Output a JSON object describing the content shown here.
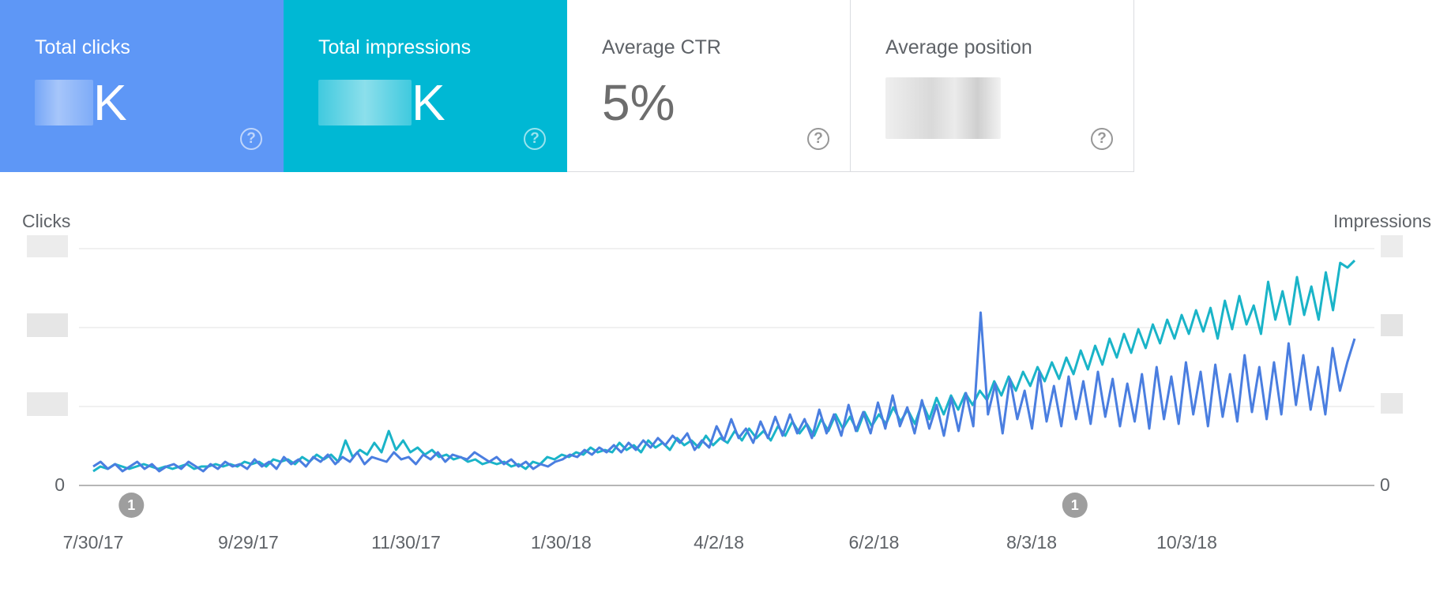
{
  "cards": [
    {
      "label": "Total clicks",
      "value_suffix": "K"
    },
    {
      "label": "Total impressions",
      "value_suffix": "K"
    },
    {
      "label": "Average CTR",
      "value": "5%"
    },
    {
      "label": "Average position"
    }
  ],
  "help_symbol": "?",
  "colors": {
    "clicks": "#5e97f6",
    "impressions": "#00b8d4",
    "clicks_line": "#4a7ee0",
    "impressions_line": "#1ab4c8",
    "grid": "#e0e0e0",
    "annotation": "#9e9e9e"
  },
  "chart_data": {
    "type": "line",
    "y_left_label": "Clicks",
    "y_right_label": "Impressions",
    "y_left_zero": "0",
    "y_right_zero": "0",
    "x_tick_labels": [
      "7/30/17",
      "9/29/17",
      "11/30/17",
      "1/30/18",
      "4/2/18",
      "6/2/18",
      "8/3/18",
      "10/3/18"
    ],
    "x_range": [
      "7/30/17",
      "12/8/18"
    ],
    "y_relative_range": [
      0,
      1
    ],
    "annotations": [
      {
        "label": "1",
        "date": "8/14/17"
      },
      {
        "label": "1",
        "date": "8/20/18"
      }
    ],
    "series": [
      {
        "name": "Clicks",
        "legend": false,
        "values": [
          0.08,
          0.1,
          0.07,
          0.09,
          0.06,
          0.08,
          0.1,
          0.07,
          0.09,
          0.06,
          0.08,
          0.09,
          0.07,
          0.1,
          0.08,
          0.06,
          0.09,
          0.07,
          0.1,
          0.08,
          0.09,
          0.07,
          0.11,
          0.08,
          0.1,
          0.07,
          0.12,
          0.09,
          0.11,
          0.08,
          0.12,
          0.1,
          0.13,
          0.09,
          0.12,
          0.1,
          0.14,
          0.09,
          0.12,
          0.11,
          0.1,
          0.14,
          0.11,
          0.12,
          0.09,
          0.13,
          0.11,
          0.14,
          0.1,
          0.13,
          0.12,
          0.11,
          0.14,
          0.12,
          0.1,
          0.12,
          0.09,
          0.11,
          0.08,
          0.1,
          0.07,
          0.09,
          0.08,
          0.1,
          0.11,
          0.13,
          0.12,
          0.15,
          0.13,
          0.16,
          0.14,
          0.17,
          0.14,
          0.18,
          0.15,
          0.19,
          0.16,
          0.2,
          0.17,
          0.21,
          0.18,
          0.22,
          0.15,
          0.19,
          0.16,
          0.25,
          0.19,
          0.28,
          0.2,
          0.24,
          0.18,
          0.27,
          0.2,
          0.29,
          0.21,
          0.3,
          0.22,
          0.28,
          0.2,
          0.32,
          0.22,
          0.3,
          0.21,
          0.34,
          0.23,
          0.31,
          0.22,
          0.35,
          0.24,
          0.38,
          0.25,
          0.33,
          0.22,
          0.36,
          0.24,
          0.34,
          0.21,
          0.37,
          0.23,
          0.39,
          0.25,
          0.73,
          0.3,
          0.43,
          0.22,
          0.45,
          0.28,
          0.4,
          0.24,
          0.48,
          0.27,
          0.42,
          0.25,
          0.46,
          0.28,
          0.44,
          0.26,
          0.48,
          0.29,
          0.45,
          0.25,
          0.43,
          0.27,
          0.47,
          0.24,
          0.5,
          0.28,
          0.46,
          0.26,
          0.52,
          0.3,
          0.48,
          0.25,
          0.51,
          0.29,
          0.47,
          0.27,
          0.55,
          0.31,
          0.5,
          0.28,
          0.52,
          0.3,
          0.6,
          0.34,
          0.55,
          0.32,
          0.5,
          0.3,
          0.58,
          0.4,
          0.52,
          0.62
        ]
      },
      {
        "name": "Impressions",
        "legend": false,
        "values": [
          0.06,
          0.08,
          0.07,
          0.09,
          0.08,
          0.07,
          0.08,
          0.09,
          0.08,
          0.07,
          0.08,
          0.07,
          0.08,
          0.09,
          0.07,
          0.08,
          0.08,
          0.09,
          0.08,
          0.09,
          0.08,
          0.1,
          0.09,
          0.1,
          0.08,
          0.11,
          0.1,
          0.11,
          0.09,
          0.12,
          0.1,
          0.13,
          0.11,
          0.13,
          0.1,
          0.19,
          0.12,
          0.15,
          0.13,
          0.18,
          0.14,
          0.23,
          0.15,
          0.19,
          0.14,
          0.16,
          0.13,
          0.15,
          0.12,
          0.13,
          0.11,
          0.12,
          0.1,
          0.11,
          0.09,
          0.1,
          0.09,
          0.1,
          0.08,
          0.09,
          0.07,
          0.1,
          0.09,
          0.12,
          0.11,
          0.13,
          0.12,
          0.14,
          0.13,
          0.16,
          0.14,
          0.15,
          0.14,
          0.18,
          0.15,
          0.17,
          0.14,
          0.19,
          0.16,
          0.18,
          0.15,
          0.2,
          0.17,
          0.19,
          0.16,
          0.21,
          0.17,
          0.2,
          0.18,
          0.23,
          0.19,
          0.24,
          0.2,
          0.23,
          0.19,
          0.25,
          0.21,
          0.27,
          0.22,
          0.26,
          0.21,
          0.28,
          0.23,
          0.3,
          0.24,
          0.29,
          0.23,
          0.31,
          0.25,
          0.3,
          0.26,
          0.33,
          0.27,
          0.32,
          0.26,
          0.35,
          0.28,
          0.37,
          0.3,
          0.38,
          0.32,
          0.39,
          0.34,
          0.4,
          0.36,
          0.44,
          0.38,
          0.46,
          0.4,
          0.48,
          0.42,
          0.5,
          0.44,
          0.52,
          0.45,
          0.54,
          0.47,
          0.57,
          0.49,
          0.59,
          0.51,
          0.62,
          0.54,
          0.64,
          0.56,
          0.66,
          0.58,
          0.68,
          0.6,
          0.7,
          0.62,
          0.72,
          0.64,
          0.74,
          0.65,
          0.75,
          0.62,
          0.78,
          0.66,
          0.8,
          0.68,
          0.76,
          0.64,
          0.86,
          0.7,
          0.82,
          0.68,
          0.88,
          0.72,
          0.84,
          0.7,
          0.9,
          0.74,
          0.94,
          0.92,
          0.95
        ]
      }
    ]
  }
}
